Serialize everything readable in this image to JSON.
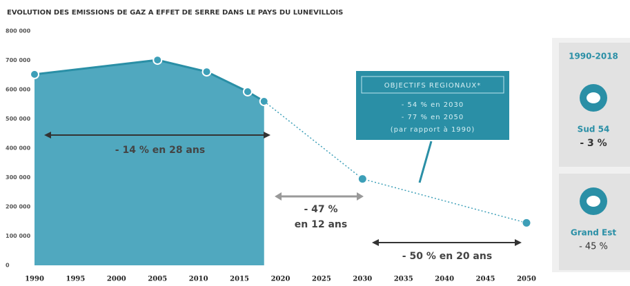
{
  "chart_data": {
    "type": "area",
    "title": "EVOLUTION DES EMISSIONS DE GAZ A EFFET DE SERRE DANS LE PAYS DU LUNEVILLOIS",
    "historical": {
      "color": "#3d9fb8",
      "x": [
        1990,
        2005,
        2011,
        2016,
        2018
      ],
      "values": [
        652000,
        701000,
        661000,
        593000,
        560000
      ]
    },
    "projection": {
      "color": "#3d9fb8",
      "x": [
        2018,
        2030,
        2050
      ],
      "values": [
        560000,
        295000,
        145000
      ]
    },
    "xlim": [
      1990,
      2050
    ],
    "xticks": [
      1990,
      1995,
      2000,
      2005,
      2010,
      2015,
      2020,
      2025,
      2030,
      2035,
      2040,
      2045,
      2050
    ],
    "ylim": [
      0,
      800000
    ],
    "yticks": [
      0,
      {
        "value": 100000,
        "label": "100 000"
      },
      {
        "value": 200000,
        "label": "200 000"
      },
      {
        "value": 300000,
        "label": "300 000"
      },
      {
        "value": 400000,
        "label": "400 000"
      },
      {
        "value": 500000,
        "label": "500 000"
      },
      {
        "value": 600000,
        "label": "600 000"
      },
      {
        "value": 700000,
        "label": "700 000"
      },
      {
        "value": 800000,
        "label": "800 000"
      }
    ],
    "annotations": [
      "- 14 % en 28 ans",
      "- 47 %",
      "en 12 ans",
      "- 50 % en 20 ans"
    ],
    "objectives": {
      "title": "OBJECTIFS REGIONAUX*",
      "lines": [
        "- 54 % en 2030",
        "- 77 % en 2050",
        "(par rapport à 1990)"
      ]
    },
    "side_panel": {
      "period": "1990-2018",
      "items": [
        {
          "name": "Sud 54",
          "value": "- 3 %"
        },
        {
          "name": "Grand Est",
          "value": "- 45 %"
        }
      ]
    }
  }
}
